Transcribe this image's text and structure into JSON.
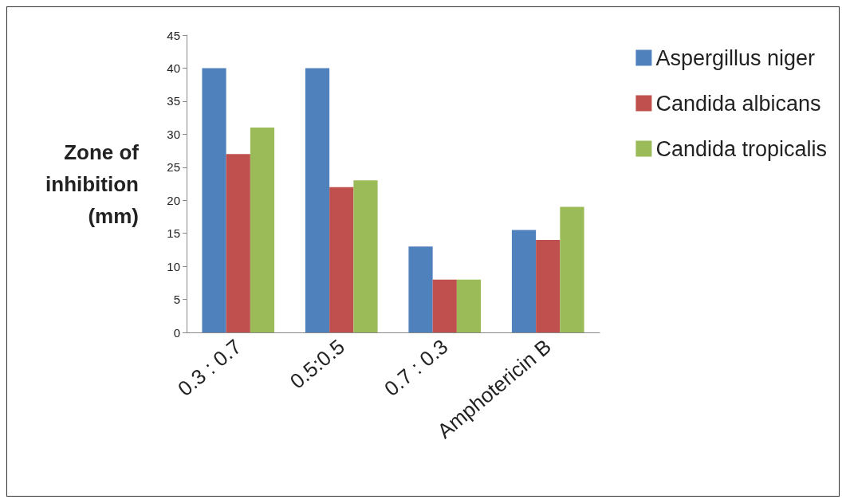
{
  "chart_data": {
    "type": "bar",
    "ylabel": "Zone of\ninhibition\n(mm)",
    "categories": [
      "0.3 : 0.7",
      "0.5:0.5",
      "0.7 : 0.3",
      "Amphotericin B"
    ],
    "series": [
      {
        "name": "Aspergillus niger",
        "color": "#4f81bd",
        "values": [
          40,
          40,
          13,
          15.5
        ]
      },
      {
        "name": "Candida albicans",
        "color": "#c0504d",
        "values": [
          27,
          22,
          8,
          14
        ]
      },
      {
        "name": "Candida tropicalis",
        "color": "#9bbb59",
        "values": [
          31,
          23,
          8,
          19
        ]
      }
    ],
    "ylim": [
      0,
      45
    ],
    "yticks": [
      0,
      5,
      10,
      15,
      20,
      25,
      30,
      35,
      40,
      45
    ],
    "grid": false,
    "legend": "right"
  }
}
